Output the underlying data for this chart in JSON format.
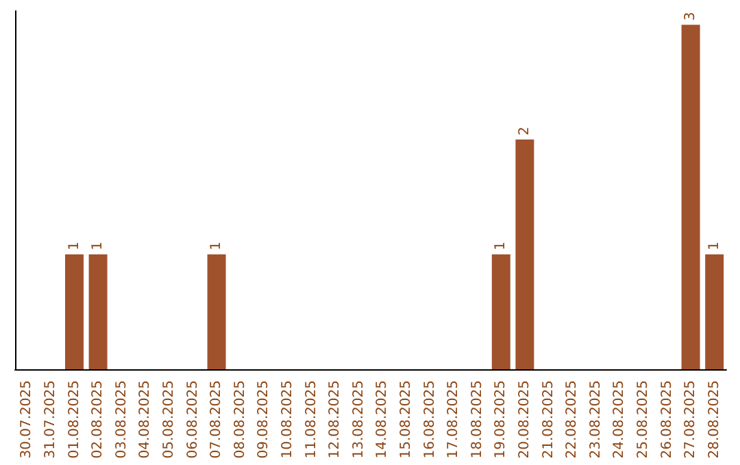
{
  "chart_data": {
    "type": "bar",
    "categories": [
      "30.07.2025",
      "31.07.2025",
      "01.08.2025",
      "02.08.2025",
      "03.08.2025",
      "04.08.2025",
      "05.08.2025",
      "06.08.2025",
      "07.08.2025",
      "08.08.2025",
      "09.08.2025",
      "10.08.2025",
      "11.08.2025",
      "12.08.2025",
      "13.08.2025",
      "14.08.2025",
      "15.08.2025",
      "16.08.2025",
      "17.08.2025",
      "18.08.2025",
      "19.08.2025",
      "20.08.2025",
      "21.08.2025",
      "22.08.2025",
      "23.08.2025",
      "24.08.2025",
      "25.08.2025",
      "26.08.2025",
      "27.08.2025",
      "28.08.2025"
    ],
    "values": [
      0,
      0,
      1,
      1,
      0,
      0,
      0,
      0,
      1,
      0,
      0,
      0,
      0,
      0,
      0,
      0,
      0,
      0,
      0,
      0,
      1,
      2,
      0,
      0,
      0,
      0,
      0,
      0,
      3,
      1
    ],
    "value_labels": [
      null,
      null,
      "1",
      "1",
      null,
      null,
      null,
      null,
      "1",
      null,
      null,
      null,
      null,
      null,
      null,
      null,
      null,
      null,
      null,
      null,
      "1",
      "2",
      null,
      null,
      null,
      null,
      null,
      null,
      "3",
      "1"
    ],
    "color": "#a0522d",
    "tick_labels": "x"
  }
}
